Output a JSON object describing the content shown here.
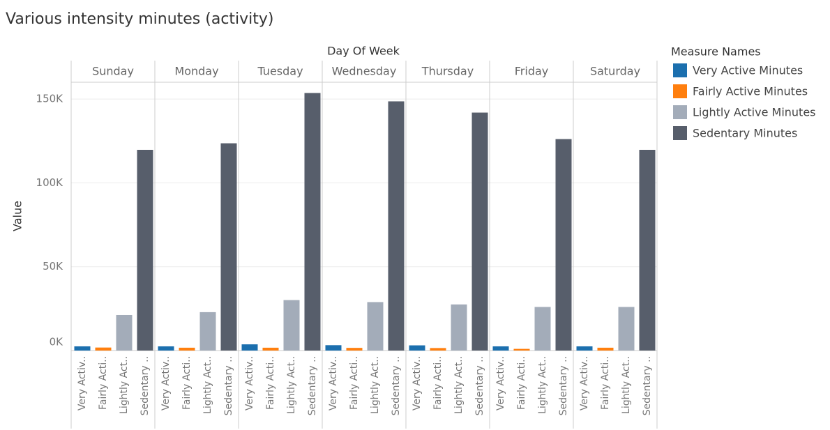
{
  "chart_data": {
    "type": "bar",
    "title": "Various intensity minutes (activity)",
    "x_label": "Day Of Week",
    "y_label": "Value",
    "legend_title": "Measure Names",
    "categories": [
      "Sunday",
      "Monday",
      "Tuesday",
      "Wednesday",
      "Thursday",
      "Friday",
      "Saturday"
    ],
    "series": [
      {
        "name": "Very Active Minutes",
        "axis_label": "Very Activ..",
        "color": "#1b6fae",
        "values": [
          2500,
          2500,
          3700,
          3200,
          3100,
          2500,
          2500
        ]
      },
      {
        "name": "Fairly Active Minutes",
        "axis_label": "Fairly Acti..",
        "color": "#ff7f0e",
        "values": [
          1800,
          1700,
          1700,
          1600,
          1500,
          1000,
          1700
        ]
      },
      {
        "name": "Lightly Active Minutes",
        "axis_label": "Lightly Act..",
        "color": "#a3acb9",
        "values": [
          21200,
          22900,
          30100,
          28900,
          27500,
          26000,
          26000
        ]
      },
      {
        "name": "Sedentary Minutes",
        "axis_label": "Sedentary ..",
        "color": "#575e6b",
        "values": [
          119700,
          123600,
          153600,
          148600,
          141900,
          126100,
          119700
        ]
      }
    ],
    "ylim": [
      0,
      160000
    ],
    "yticks": [
      {
        "value": 0,
        "label": "0K"
      },
      {
        "value": 50000,
        "label": "50K"
      },
      {
        "value": 100000,
        "label": "100K"
      },
      {
        "value": 150000,
        "label": "150K"
      }
    ],
    "grid": true,
    "legend": "right"
  }
}
